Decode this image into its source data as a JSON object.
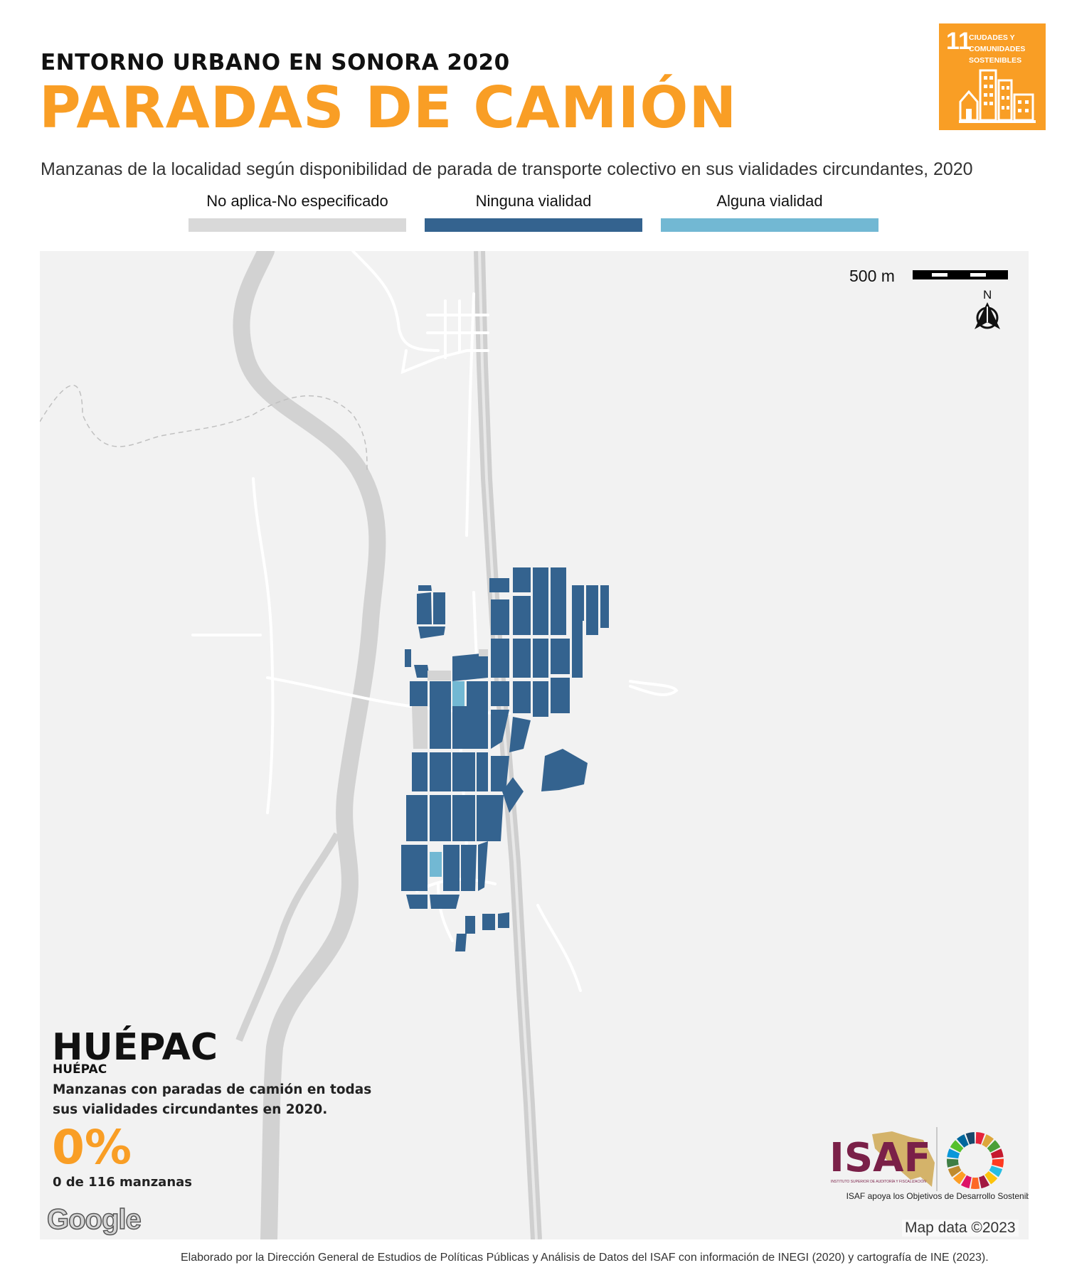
{
  "header": {
    "kicker": "ENTORNO URBANO EN SONORA 2020",
    "title": "PARADAS DE CAMIÓN",
    "subtitle": "Manzanas de la localidad según disponibilidad de parada de transporte colectivo en sus vialidades circundantes, 2020"
  },
  "sdg_badge": {
    "number": "11",
    "text": "CIUDADES Y COMUNIDADES SOSTENIBLES",
    "color": "#f99e25"
  },
  "legend": [
    {
      "label": "No aplica-No especificado",
      "color": "#d9d9d9"
    },
    {
      "label": "Ninguna vialidad",
      "color": "#34638f"
    },
    {
      "label": "Alguna vialidad",
      "color": "#72b8d3"
    }
  ],
  "map": {
    "scale_label": "500 m",
    "north_label": "N",
    "attribution": "Map data ©2023",
    "provider_logo": "Google",
    "background_color": "#f2f2f2"
  },
  "locality": {
    "name": "HUÉPAC",
    "municipality": "HUÉPAC",
    "description": "Manzanas con paradas de camión en todas sus vialidades circundantes en 2020.",
    "percentage": "0%",
    "count_text": "0 de 116 manzanas"
  },
  "logos": {
    "isaf": "ISAF",
    "isaf_subtitle": "INSTITUTO SUPERIOR DE AUDITORÍA Y FISCALIZACIÓN",
    "tagline": "ISAF apoya los Objetivos de Desarrollo Sostenible"
  },
  "footer": {
    "credit": "Elaborado por la Dirección General de Estudios de Políticas Públicas y Análisis de Datos del ISAF con información de INEGI (2020) y cartografía de INE (2023)."
  }
}
